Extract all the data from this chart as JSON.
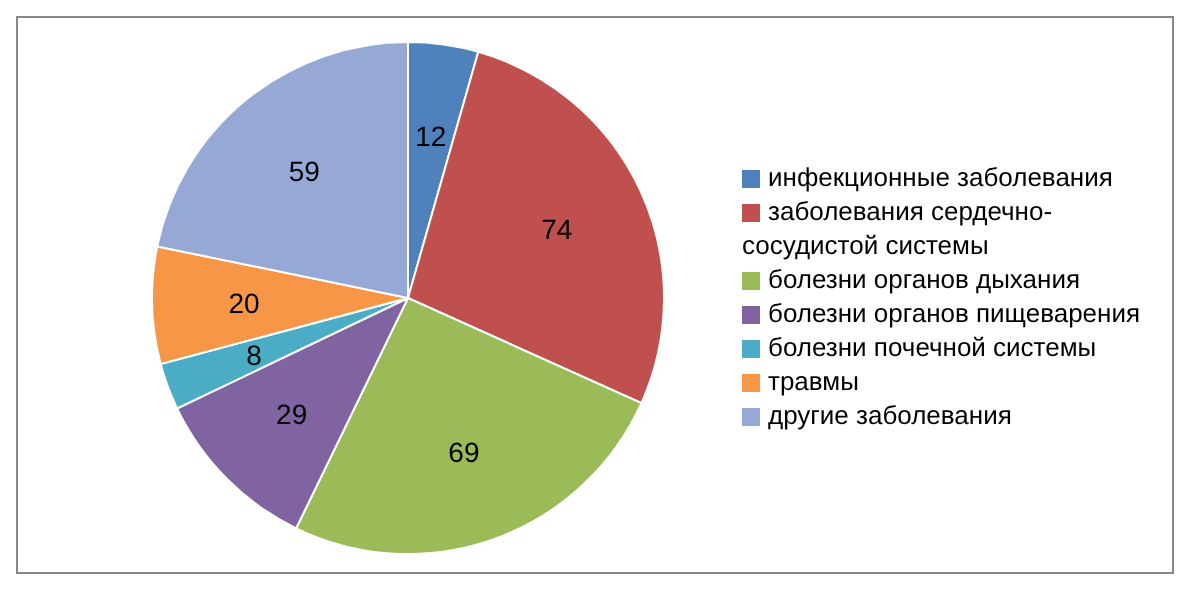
{
  "chart_data": {
    "type": "pie",
    "categories": [
      "инфекционные заболевания",
      "заболевания  сердечно-сосудистой системы",
      "болезни органов дыхания",
      "болезни органов пищеварения",
      "болезни почечной системы",
      "травмы",
      "другие заболевания"
    ],
    "values": [
      12,
      74,
      69,
      29,
      8,
      20,
      59
    ],
    "colors": [
      "#4f81bd",
      "#c0504d",
      "#9bbb59",
      "#8064a2",
      "#4bacc6",
      "#f79646",
      "#95a8d6"
    ],
    "data_labels": true,
    "legend": "right"
  }
}
